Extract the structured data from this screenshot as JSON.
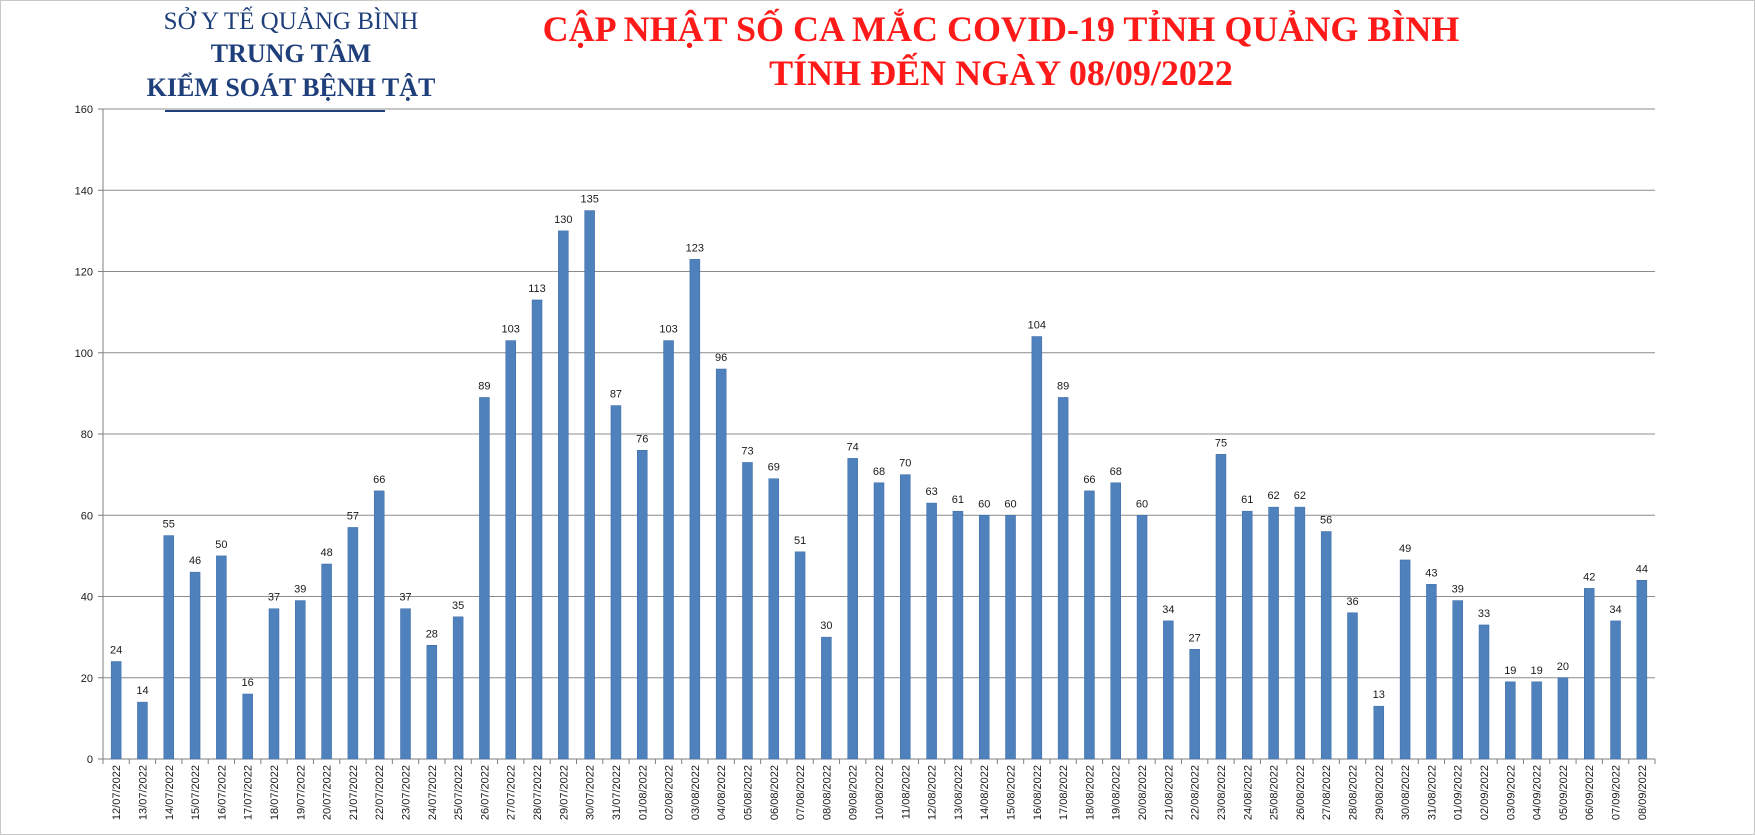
{
  "header": {
    "org_line1": "SỞ Y TẾ QUẢNG BÌNH",
    "org_line2": "TRUNG TÂM",
    "org_line3": "KIỂM SOÁT BỆNH TẬT",
    "title_line1": "CẬP NHẬT SỐ CA MẮC COVID-19 TỈNH QUẢNG BÌNH",
    "title_line2": "TÍNH ĐẾN NGÀY 08/09/2022"
  },
  "chart_data": {
    "type": "bar",
    "title": "CẬP NHẬT SỐ CA MẮC COVID-19 TỈNH QUẢNG BÌNH TÍNH ĐẾN NGÀY 08/09/2022",
    "xlabel": "",
    "ylabel": "",
    "ylim": [
      0,
      160
    ],
    "yticks": [
      0,
      20,
      40,
      60,
      80,
      100,
      120,
      140,
      160
    ],
    "grid": true,
    "legend": "none",
    "bar_color": "#4f81bd",
    "categories": [
      "12/07/2022",
      "13/07/2022",
      "14/07/2022",
      "15/07/2022",
      "16/07/2022",
      "17/07/2022",
      "18/07/2022",
      "19/07/2022",
      "20/07/2022",
      "21/07/2022",
      "22/07/2022",
      "23/07/2022",
      "24/07/2022",
      "25/07/2022",
      "26/07/2022",
      "27/07/2022",
      "28/07/2022",
      "29/07/2022",
      "30/07/2022",
      "31/07/2022",
      "01/08/2022",
      "02/08/2022",
      "03/08/2022",
      "04/08/2022",
      "05/08/2022",
      "06/08/2022",
      "07/08/2022",
      "08/08/2022",
      "09/08/2022",
      "10/08/2022",
      "11/08/2022",
      "12/08/2022",
      "13/08/2022",
      "14/08/2022",
      "15/08/2022",
      "16/08/2022",
      "17/08/2022",
      "18/08/2022",
      "19/08/2022",
      "20/08/2022",
      "21/08/2022",
      "22/08/2022",
      "23/08/2022",
      "24/08/2022",
      "25/08/2022",
      "26/08/2022",
      "27/08/2022",
      "28/08/2022",
      "29/08/2022",
      "30/08/2022",
      "31/08/2022",
      "01/09/2022",
      "02/09/2022",
      "03/09/2022",
      "04/09/2022",
      "05/09/2022",
      "06/09/2022",
      "07/09/2022",
      "08/09/2022"
    ],
    "values": [
      24,
      14,
      55,
      46,
      50,
      16,
      37,
      39,
      48,
      57,
      66,
      37,
      28,
      35,
      89,
      103,
      113,
      130,
      135,
      87,
      76,
      103,
      123,
      96,
      73,
      69,
      51,
      30,
      74,
      68,
      70,
      63,
      61,
      60,
      60,
      104,
      89,
      66,
      68,
      60,
      34,
      27,
      75,
      61,
      62,
      62,
      56,
      36,
      13,
      49,
      43,
      39,
      33,
      19,
      19,
      20,
      42,
      34,
      44
    ]
  }
}
